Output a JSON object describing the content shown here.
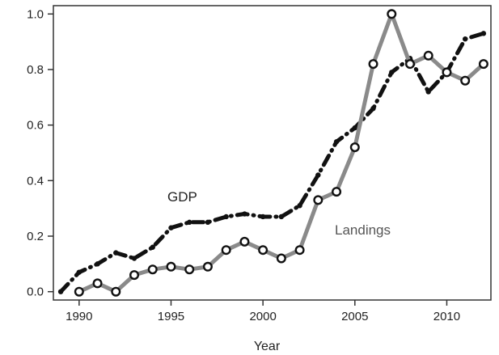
{
  "chart_data": {
    "type": "line",
    "title": "",
    "xlabel": "Year",
    "ylabel": "",
    "xlim": [
      1988.6,
      2012.4
    ],
    "ylim": [
      -0.03,
      1.03
    ],
    "x_ticks": [
      1990,
      1995,
      2000,
      2005,
      2010
    ],
    "x_tick_labels": [
      "1990",
      "1995",
      "2000",
      "2005",
      "2010"
    ],
    "y_ticks": [
      0.0,
      0.2,
      0.4,
      0.6,
      0.8,
      1.0
    ],
    "y_tick_labels": [
      "0.0",
      "0.2",
      "0.4",
      "0.6",
      "0.8",
      "1.0"
    ],
    "grid": false,
    "series": [
      {
        "name": "GDP",
        "color": "#111111",
        "style": "dash-dot",
        "x": [
          1989,
          1990,
          1991,
          1992,
          1993,
          1994,
          1995,
          1996,
          1997,
          1998,
          1999,
          2000,
          2001,
          2002,
          2003,
          2004,
          2005,
          2006,
          2007,
          2008,
          2009,
          2010,
          2011,
          2012
        ],
        "y": [
          0.0,
          0.07,
          0.1,
          0.14,
          0.12,
          0.16,
          0.23,
          0.25,
          0.25,
          0.27,
          0.28,
          0.27,
          0.27,
          0.31,
          0.42,
          0.54,
          0.59,
          0.66,
          0.79,
          0.84,
          0.72,
          0.79,
          0.91,
          0.93
        ]
      },
      {
        "name": "Landings",
        "color": "#8a8a8a",
        "style": "open-circles",
        "x": [
          1990,
          1991,
          1992,
          1993,
          1994,
          1995,
          1996,
          1997,
          1998,
          1999,
          2000,
          2001,
          2002,
          2003,
          2004,
          2005,
          2006,
          2007,
          2008,
          2009,
          2010,
          2011,
          2012
        ],
        "y": [
          0.0,
          0.03,
          0.0,
          0.06,
          0.08,
          0.09,
          0.08,
          0.09,
          0.15,
          0.18,
          0.15,
          0.12,
          0.15,
          0.33,
          0.36,
          0.52,
          0.82,
          1.0,
          0.82,
          0.85,
          0.79,
          0.76,
          0.82
        ]
      }
    ],
    "annotations": [
      {
        "text": "GDP",
        "series": "GDP"
      },
      {
        "text": "Landings",
        "series": "Landings"
      }
    ]
  }
}
